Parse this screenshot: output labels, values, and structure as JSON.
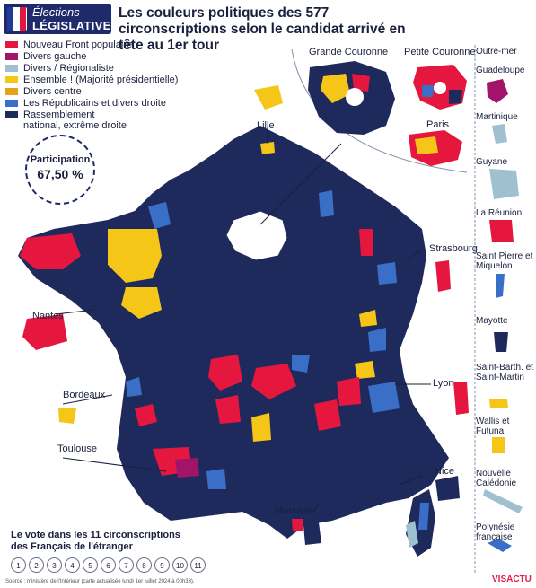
{
  "badge": {
    "line1": "Élections",
    "line2": "LÉGISLATIVES"
  },
  "title": "Les couleurs politiques des 577 circonscriptions selon le candidat arrivé en tête au 1er tour",
  "legend": [
    {
      "label": "Nouveau Front populaire",
      "color": "#e5173f"
    },
    {
      "label": "Divers gauche",
      "color": "#a1146a"
    },
    {
      "label": "Divers / Régionaliste",
      "color": "#9fc0cf"
    },
    {
      "label": "Ensemble ! (Majorité présidentielle)",
      "color": "#f5c518"
    },
    {
      "label": "Divers centre",
      "color": "#e6a21a"
    },
    {
      "label": "Les Républicains et divers droite",
      "color": "#3a6fc8"
    },
    {
      "label": "Rassemblement national, extrême droite",
      "color": "#1f2a5c"
    }
  ],
  "participation": {
    "label": "Participation",
    "value": "67,50 %"
  },
  "insets": {
    "grande": "Grande Couronne",
    "petite": "Petite Couronne",
    "paris": "Paris"
  },
  "cities": {
    "lille": "Lille",
    "strasbourg": "Strasbourg",
    "nantes": "Nantes",
    "bordeaux": "Bordeaux",
    "lyon": "Lyon",
    "toulouse": "Toulouse",
    "nice": "Nice",
    "marseille": "Marseille"
  },
  "outremer": {
    "header": "Outre-mer",
    "items": [
      "Guadeloupe",
      "Martinique",
      "Guyane",
      "La Réunion",
      "Saint Pierre et Miquelon",
      "Mayotte",
      "Saint-Barth. et Saint-Martin",
      "Wallis et Futuna",
      "Nouvelle Calédonie",
      "Polynésie française"
    ]
  },
  "abroad": {
    "title": "Le vote dans les 11 circonscriptions des Français de l'étranger",
    "numbers": [
      "1",
      "2",
      "3",
      "4",
      "5",
      "6",
      "7",
      "8",
      "9",
      "10",
      "11"
    ]
  },
  "source": "Source : ministère de l'Intérieur (carte actualisée lundi 1er juillet 2024 à 00h33).",
  "logo": "VISACTU"
}
